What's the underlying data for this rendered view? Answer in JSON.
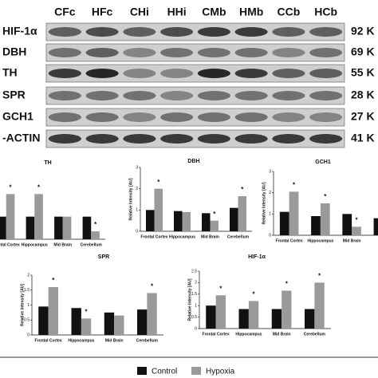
{
  "blot": {
    "lanes": [
      "CFc",
      "HFc",
      "CHi",
      "HHi",
      "CMb",
      "HMb",
      "CCb",
      "HCb"
    ],
    "proteins": [
      "HIF-1α",
      "DBH",
      "TH",
      "SPR",
      "GCH1",
      "-ACTIN"
    ],
    "sizes": [
      "92 K",
      "69 K",
      "55 K",
      "28 K",
      "27 K",
      "41 K"
    ]
  },
  "chart_data": [
    {
      "type": "bar",
      "title": "TH",
      "categories": [
        "Frontal Cortex",
        "Hippocampus",
        "Mid Brain",
        "Cerebellum"
      ],
      "series": [
        {
          "name": "Control",
          "color": "#111111",
          "values": [
            1.0,
            1.0,
            1.0,
            1.0
          ]
        },
        {
          "name": "Hypoxia",
          "color": "#9a9a9a",
          "values": [
            2.0,
            2.0,
            1.0,
            0.35
          ]
        }
      ],
      "ylim": [
        0,
        3
      ],
      "annotations": [
        {
          "text": "*",
          "category": "Frontal Cortex",
          "series": "Hypoxia"
        },
        {
          "text": "*",
          "category": "Hippocampus",
          "series": "Hypoxia"
        },
        {
          "text": "*",
          "category": "Cerebellum",
          "series": "Hypoxia"
        }
      ]
    },
    {
      "type": "bar",
      "title": "DBH",
      "ylabel": "Relative Intensity [AU]",
      "categories": [
        "Frontal Cortex",
        "Hippocampus",
        "Mid Brain",
        "Cerebellum"
      ],
      "series": [
        {
          "name": "Control",
          "color": "#111111",
          "values": [
            1.0,
            0.95,
            0.85,
            1.1
          ]
        },
        {
          "name": "Hypoxia",
          "color": "#9a9a9a",
          "values": [
            2.0,
            0.9,
            0.5,
            1.65
          ]
        }
      ],
      "ylim": [
        0,
        3
      ],
      "yticks": [
        0,
        1,
        2,
        3
      ],
      "annotations": [
        {
          "text": "*",
          "category": "Frontal Cortex",
          "series": "Hypoxia"
        },
        {
          "text": "*",
          "category": "Mid Brain",
          "series": "Hypoxia"
        },
        {
          "text": "*",
          "category": "Cerebellum",
          "series": "Hypoxia"
        }
      ]
    },
    {
      "type": "bar",
      "title": "GCH1",
      "ylabel": "Relative Intensity [AU]",
      "categories": [
        "Frontal Cortex",
        "Hippocampus",
        "Mid Brain",
        null
      ],
      "series": [
        {
          "name": "Control",
          "color": "#111111",
          "values": [
            1.1,
            0.9,
            1.0,
            0.8
          ]
        },
        {
          "name": "Hypoxia",
          "color": "#9a9a9a",
          "values": [
            2.05,
            1.5,
            0.4,
            null
          ]
        }
      ],
      "ylim": [
        0,
        3
      ],
      "yticks": [
        0,
        1,
        2,
        3
      ],
      "annotations": [
        {
          "text": "*",
          "category": "Frontal Cortex",
          "series": "Hypoxia"
        },
        {
          "text": "*",
          "category": "Hippocampus",
          "series": "Hypoxia"
        },
        {
          "text": "*",
          "category": "Mid Brain",
          "series": "Hypoxia"
        }
      ]
    },
    {
      "type": "bar",
      "title": "SPR",
      "ylabel": "Relative Intensity [AU]",
      "categories": [
        "Frontal Cortex",
        "Hippocampus",
        "Mid Brain",
        "Cerebellum"
      ],
      "series": [
        {
          "name": "Control",
          "color": "#111111",
          "values": [
            0.95,
            0.9,
            0.75,
            0.85
          ]
        },
        {
          "name": "Hypoxia",
          "color": "#9a9a9a",
          "values": [
            1.6,
            0.55,
            0.65,
            1.4
          ]
        }
      ],
      "ylim": [
        0,
        2
      ],
      "yticks": [
        0,
        0.5,
        1,
        1.5,
        2
      ],
      "annotations": [
        {
          "text": "*",
          "category": "Frontal Cortex",
          "series": "Hypoxia"
        },
        {
          "text": "*",
          "category": "Hippocampus",
          "series": "Hypoxia"
        },
        {
          "text": "*",
          "category": "Cerebellum",
          "series": "Hypoxia"
        }
      ]
    },
    {
      "type": "bar",
      "title": "HIF-1α",
      "ylabel": "Relative Intensity [AU]",
      "categories": [
        "Frontal Cortex",
        "Hippocampus",
        "Mid Brain",
        "Cerebellum"
      ],
      "series": [
        {
          "name": "Control",
          "color": "#111111",
          "values": [
            1.0,
            0.85,
            0.85,
            0.85
          ]
        },
        {
          "name": "Hypoxia",
          "color": "#9a9a9a",
          "values": [
            1.45,
            1.2,
            1.65,
            2.0
          ]
        }
      ],
      "ylim": [
        0,
        2.5
      ],
      "yticks": [
        0,
        0.5,
        1,
        1.5,
        2,
        2.5
      ],
      "annotations": [
        {
          "text": "*",
          "category": "Frontal Cortex",
          "series": "Hypoxia"
        },
        {
          "text": "*",
          "category": "Hippocampus",
          "series": "Hypoxia"
        },
        {
          "text": "*",
          "category": "Mid Brain",
          "series": "Hypoxia"
        },
        {
          "text": "*",
          "category": "Cerebellum",
          "series": "Hypoxia"
        }
      ]
    }
  ]
}
